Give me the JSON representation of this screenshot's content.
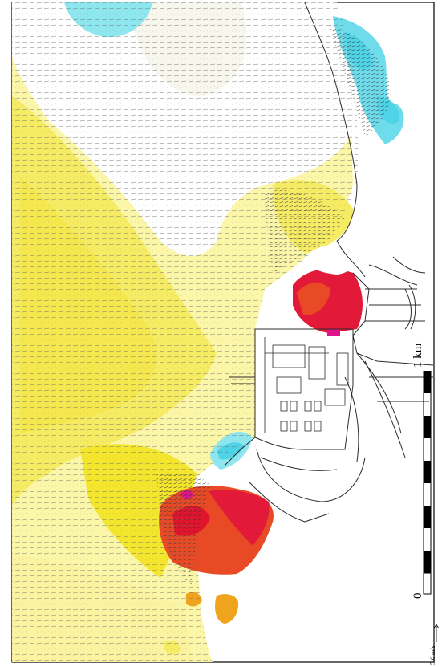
{
  "scale_bar": {
    "start_label": "0",
    "end_label": "1 km",
    "divisions": 10
  },
  "velocity_legend": {
    "label": "5.0 m/s"
  },
  "colors": {
    "background": "#ffffff",
    "frame": "#000000",
    "light_yellow": "#fbf6a8",
    "yellow": "#f5eb55",
    "bright_yellow": "#f2e21c",
    "orange": "#f0a41e",
    "red_orange": "#e84a26",
    "red": "#e3193a",
    "magenta": "#e0148a",
    "cyan": "#8ee6ee",
    "deep_cyan": "#4fd3e6",
    "land_lines": "#2c2c2c",
    "vector": "#555555"
  }
}
